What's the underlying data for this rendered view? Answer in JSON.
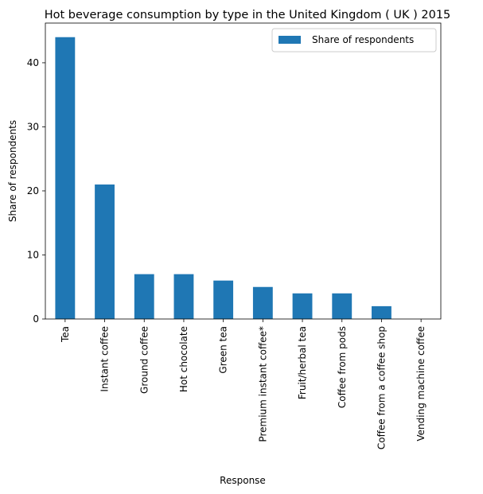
{
  "chart_data": {
    "type": "bar",
    "title": "Hot beverage consumption by type in the United Kingdom ( UK ) 2015",
    "xlabel": "Response",
    "ylabel": "Share of respondents",
    "categories": [
      "Tea",
      "Instant coffee",
      "Ground coffee",
      "Hot chocolate",
      "Green tea",
      "Premium instant coffee*",
      "Fruit/herbal tea",
      "Coffee from pods",
      "Coffee from a coffee shop",
      "Vending machine coffee"
    ],
    "series": [
      {
        "name": "Share of respondents",
        "values": [
          44,
          21,
          7,
          7,
          6,
          5,
          4,
          4,
          2,
          0
        ],
        "color": "#1f77b4"
      }
    ],
    "ylim": [
      0,
      46.2
    ],
    "yticks": [
      0,
      10,
      20,
      30,
      40
    ],
    "legend": "top-right",
    "grid": false
  }
}
